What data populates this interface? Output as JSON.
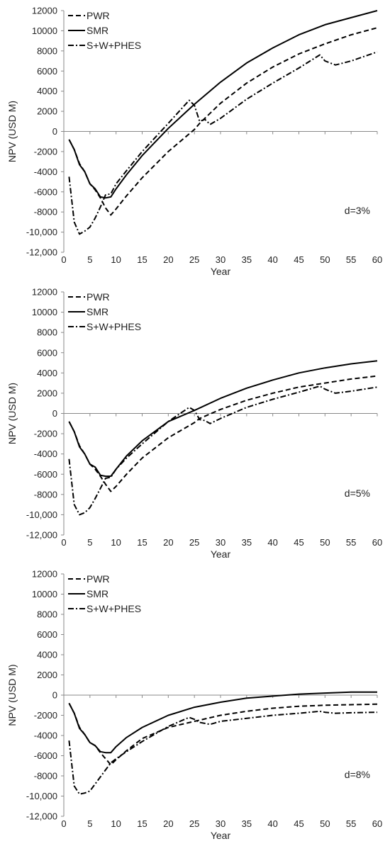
{
  "chart_data": [
    {
      "type": "line",
      "xlabel": "Year",
      "ylabel": "NPV (USD M)",
      "annotation": "d=3%",
      "xlim": [
        0,
        60
      ],
      "ylim": [
        -12000,
        12000
      ],
      "xticks": [
        "0",
        "5",
        "10",
        "15",
        "20",
        "25",
        "30",
        "35",
        "40",
        "45",
        "50",
        "55",
        "60"
      ],
      "yticks": [
        "-12,000",
        "-10,000",
        "-8000",
        "-6000",
        "-4000",
        "-2000",
        "0",
        "2000",
        "4000",
        "6000",
        "8000",
        "10000",
        "12000"
      ],
      "legend": "top-left",
      "series": [
        {
          "name": "PWR",
          "style": "dash",
          "x": [
            1,
            2,
            3,
            4,
            5,
            6,
            7,
            8,
            9,
            10,
            12,
            15,
            20,
            25,
            26,
            30,
            35,
            40,
            45,
            50,
            55,
            60
          ],
          "y": [
            -800,
            -1800,
            -3200,
            -4000,
            -5200,
            -5800,
            -6600,
            -7600,
            -8300,
            -7700,
            -6400,
            -4600,
            -2000,
            200,
            800,
            2800,
            4800,
            6400,
            7700,
            8700,
            9600,
            10300
          ]
        },
        {
          "name": "SMR",
          "style": "solid",
          "x": [
            1,
            2,
            3,
            4,
            5,
            6,
            7,
            8,
            9,
            10,
            12,
            15,
            20,
            25,
            30,
            35,
            40,
            45,
            50,
            55,
            60
          ],
          "y": [
            -800,
            -1800,
            -3300,
            -4000,
            -5200,
            -5700,
            -6500,
            -6600,
            -6500,
            -5700,
            -4300,
            -2400,
            300,
            2700,
            4900,
            6800,
            8300,
            9600,
            10600,
            11300,
            12000
          ]
        },
        {
          "name": "S+W+PHES",
          "style": "dashdot",
          "x": [
            1,
            2,
            3,
            4,
            5,
            6,
            7,
            8,
            9,
            10,
            12,
            15,
            20,
            24,
            25,
            26,
            27,
            28,
            30,
            35,
            40,
            45,
            49,
            50,
            52,
            55,
            60
          ],
          "y": [
            -4500,
            -9000,
            -10200,
            -9900,
            -9500,
            -8600,
            -7500,
            -6300,
            -6200,
            -5200,
            -3900,
            -2000,
            800,
            3100,
            2600,
            1000,
            1200,
            700,
            1300,
            3200,
            4800,
            6300,
            7600,
            7000,
            6600,
            7000,
            7900
          ]
        }
      ]
    },
    {
      "type": "line",
      "xlabel": "Year",
      "ylabel": "NPV (USD M)",
      "annotation": "d=5%",
      "xlim": [
        0,
        60
      ],
      "ylim": [
        -12000,
        12000
      ],
      "xticks": [
        "0",
        "5",
        "10",
        "15",
        "20",
        "25",
        "30",
        "35",
        "40",
        "45",
        "50",
        "55",
        "60"
      ],
      "yticks": [
        "-12,000",
        "-10,000",
        "-8000",
        "-6000",
        "-4000",
        "-2000",
        "0",
        "2000",
        "4000",
        "6000",
        "8000",
        "10000",
        "12000"
      ],
      "legend": "top-left",
      "series": [
        {
          "name": "PWR",
          "style": "dash",
          "x": [
            1,
            2,
            3,
            4,
            5,
            6,
            7,
            8,
            9,
            10,
            12,
            15,
            20,
            25,
            26,
            30,
            35,
            40,
            45,
            50,
            55,
            60
          ],
          "y": [
            -800,
            -1800,
            -3200,
            -4000,
            -5000,
            -5500,
            -6200,
            -7000,
            -7700,
            -7200,
            -6000,
            -4400,
            -2400,
            -900,
            -500,
            400,
            1300,
            2000,
            2600,
            3000,
            3400,
            3700
          ]
        },
        {
          "name": "SMR",
          "style": "solid",
          "x": [
            1,
            2,
            3,
            4,
            5,
            6,
            7,
            8,
            9,
            10,
            12,
            15,
            20,
            25,
            30,
            35,
            40,
            45,
            50,
            55,
            60
          ],
          "y": [
            -800,
            -1800,
            -3300,
            -4000,
            -5000,
            -5300,
            -6100,
            -6200,
            -6200,
            -5500,
            -4200,
            -2700,
            -800,
            300,
            1500,
            2500,
            3300,
            4000,
            4500,
            4900,
            5200
          ]
        },
        {
          "name": "S+W+PHES",
          "style": "dashdot",
          "x": [
            1,
            2,
            3,
            4,
            5,
            6,
            7,
            8,
            9,
            10,
            12,
            15,
            20,
            24,
            25,
            26,
            27,
            28,
            30,
            35,
            40,
            45,
            49,
            50,
            52,
            55,
            60
          ],
          "y": [
            -4500,
            -9000,
            -10000,
            -9800,
            -9300,
            -8400,
            -7400,
            -6400,
            -6300,
            -5500,
            -4400,
            -3000,
            -800,
            600,
            300,
            -600,
            -700,
            -1000,
            -500,
            600,
            1400,
            2100,
            2700,
            2400,
            2000,
            2200,
            2600
          ]
        }
      ]
    },
    {
      "type": "line",
      "xlabel": "Year",
      "ylabel": "NPV (USD M)",
      "annotation": "d=8%",
      "xlim": [
        0,
        60
      ],
      "ylim": [
        -12000,
        12000
      ],
      "xticks": [
        "0",
        "5",
        "10",
        "15",
        "20",
        "25",
        "30",
        "35",
        "40",
        "45",
        "50",
        "55",
        "60"
      ],
      "yticks": [
        "-12,000",
        "-10,000",
        "-8000",
        "-6000",
        "-4000",
        "-2000",
        "0",
        "2000",
        "4000",
        "6000",
        "8000",
        "10000",
        "12000"
      ],
      "legend": "top-left",
      "series": [
        {
          "name": "PWR",
          "style": "dash",
          "x": [
            1,
            2,
            3,
            4,
            5,
            6,
            7,
            8,
            9,
            10,
            12,
            15,
            20,
            25,
            30,
            35,
            40,
            45,
            50,
            55,
            60
          ],
          "y": [
            -800,
            -1800,
            -3200,
            -3900,
            -4700,
            -5000,
            -5700,
            -6300,
            -6900,
            -6400,
            -5500,
            -4300,
            -3200,
            -2600,
            -2000,
            -1600,
            -1300,
            -1100,
            -1000,
            -950,
            -900
          ]
        },
        {
          "name": "SMR",
          "style": "solid",
          "x": [
            1,
            2,
            3,
            4,
            5,
            6,
            7,
            8,
            9,
            10,
            12,
            15,
            20,
            25,
            30,
            35,
            40,
            45,
            50,
            55,
            60
          ],
          "y": [
            -800,
            -1800,
            -3300,
            -3900,
            -4700,
            -5000,
            -5600,
            -5700,
            -5700,
            -5100,
            -4200,
            -3200,
            -2000,
            -1200,
            -700,
            -300,
            -100,
            100,
            200,
            300,
            300
          ]
        },
        {
          "name": "S+W+PHES",
          "style": "dashdot",
          "x": [
            1,
            2,
            3,
            4,
            5,
            6,
            7,
            8,
            9,
            10,
            12,
            15,
            20,
            24,
            25,
            26,
            28,
            30,
            35,
            40,
            45,
            49,
            50,
            52,
            55,
            60
          ],
          "y": [
            -4500,
            -9000,
            -9800,
            -9700,
            -9500,
            -8800,
            -8100,
            -7400,
            -6700,
            -6300,
            -5600,
            -4600,
            -3100,
            -2200,
            -2400,
            -2700,
            -2900,
            -2600,
            -2300,
            -2000,
            -1800,
            -1600,
            -1700,
            -1800,
            -1750,
            -1700
          ]
        }
      ]
    }
  ]
}
